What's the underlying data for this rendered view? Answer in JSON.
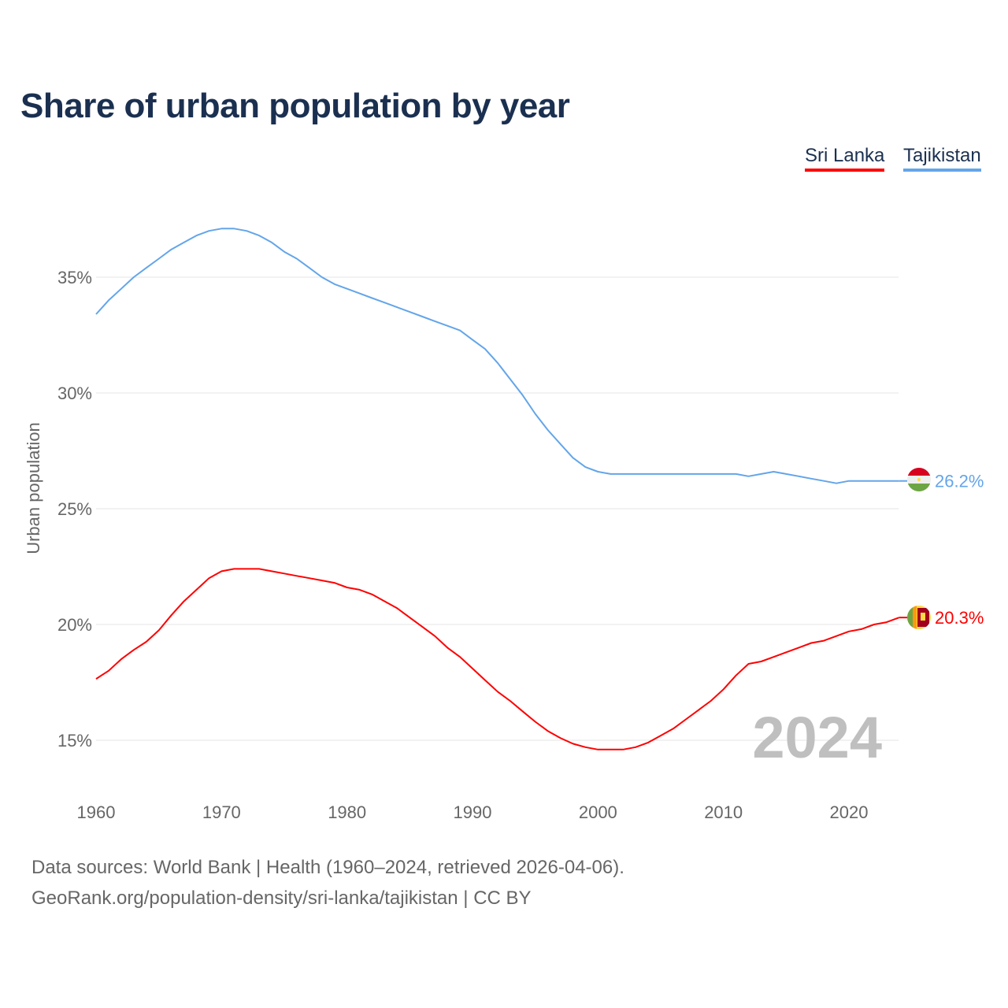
{
  "chart_data": {
    "type": "line",
    "title": "Share of urban population by year",
    "ylabel": "Urban population",
    "xlabel": "",
    "xlim": [
      1960,
      2024
    ],
    "ylim": [
      13,
      38.5
    ],
    "x_ticks": [
      1960,
      1970,
      1980,
      1990,
      2000,
      2010,
      2020
    ],
    "y_ticks": [
      15,
      20,
      25,
      30,
      35
    ],
    "y_tick_labels": [
      "15%",
      "20%",
      "25%",
      "30%",
      "35%"
    ],
    "grid": true,
    "legend_placement": "top-right",
    "year_watermark": "2024",
    "x": [
      1960,
      1961,
      1962,
      1963,
      1964,
      1965,
      1966,
      1967,
      1968,
      1969,
      1970,
      1971,
      1972,
      1973,
      1974,
      1975,
      1976,
      1977,
      1978,
      1979,
      1980,
      1981,
      1982,
      1983,
      1984,
      1985,
      1986,
      1987,
      1988,
      1989,
      1990,
      1991,
      1992,
      1993,
      1994,
      1995,
      1996,
      1997,
      1998,
      1999,
      2000,
      2001,
      2002,
      2003,
      2004,
      2005,
      2006,
      2007,
      2008,
      2009,
      2010,
      2011,
      2012,
      2013,
      2014,
      2015,
      2016,
      2017,
      2018,
      2019,
      2020,
      2021,
      2022,
      2023,
      2024
    ],
    "series": [
      {
        "name": "Sri Lanka",
        "color": "#ff0000",
        "end_label": "20.3%",
        "values": [
          17.65,
          18.0,
          18.5,
          18.9,
          19.25,
          19.75,
          20.4,
          21.0,
          21.5,
          22.0,
          22.3,
          22.4,
          22.4,
          22.4,
          22.3,
          22.2,
          22.1,
          22.0,
          21.9,
          21.8,
          21.6,
          21.5,
          21.3,
          21.0,
          20.7,
          20.3,
          19.9,
          19.5,
          19.0,
          18.6,
          18.1,
          17.6,
          17.1,
          16.7,
          16.25,
          15.8,
          15.4,
          15.1,
          14.85,
          14.7,
          14.6,
          14.6,
          14.6,
          14.7,
          14.9,
          15.2,
          15.5,
          15.9,
          16.3,
          16.7,
          17.2,
          17.8,
          18.3,
          18.4,
          18.6,
          18.8,
          19.0,
          19.2,
          19.3,
          19.5,
          19.7,
          19.8,
          20.0,
          20.1,
          20.3
        ]
      },
      {
        "name": "Tajikistan",
        "color": "#63a5ea",
        "end_label": "26.2%",
        "values": [
          33.4,
          34.0,
          34.5,
          35.0,
          35.4,
          35.8,
          36.2,
          36.5,
          36.8,
          37.0,
          37.1,
          37.1,
          37.0,
          36.8,
          36.5,
          36.1,
          35.8,
          35.4,
          35.0,
          34.7,
          34.5,
          34.3,
          34.1,
          33.9,
          33.7,
          33.5,
          33.3,
          33.1,
          32.9,
          32.7,
          32.3,
          31.9,
          31.3,
          30.6,
          29.9,
          29.1,
          28.4,
          27.8,
          27.2,
          26.8,
          26.6,
          26.5,
          26.5,
          26.5,
          26.5,
          26.5,
          26.5,
          26.5,
          26.5,
          26.5,
          26.5,
          26.5,
          26.4,
          26.5,
          26.6,
          26.5,
          26.4,
          26.3,
          26.2,
          26.1,
          26.2,
          26.2,
          26.2,
          26.2,
          26.2
        ]
      }
    ]
  },
  "footer": {
    "source": "Data sources: World Bank | Health (1960–2024, retrieved 2026-04-06).",
    "url": "GeoRank.org/population-density/sri-lanka/tajikistan | CC BY"
  }
}
